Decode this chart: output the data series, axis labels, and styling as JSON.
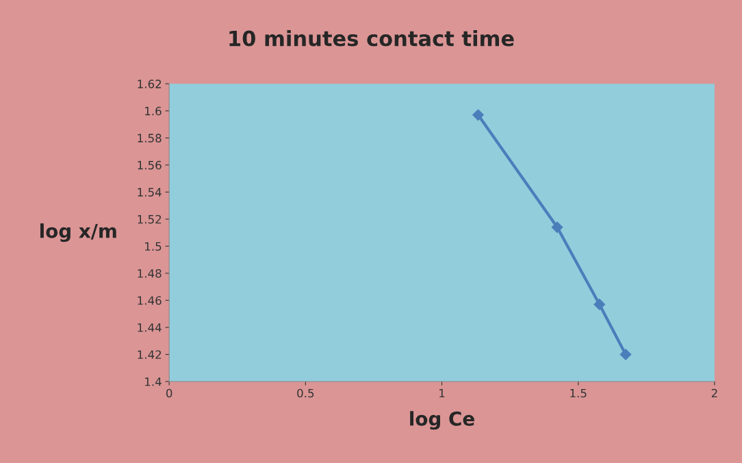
{
  "chart_data": {
    "type": "line",
    "title": "10 minutes contact time",
    "xlabel": "log Ce",
    "ylabel": "log x/m",
    "x": [
      1.133,
      1.423,
      1.578,
      1.674
    ],
    "series": [
      {
        "color": "#4a7ebb",
        "values": [
          1.597,
          1.514,
          1.457,
          1.42
        ]
      }
    ],
    "xlim": [
      0,
      2
    ],
    "xticks": [
      0,
      0.5,
      1,
      1.5,
      2
    ],
    "ylim": [
      1.4,
      1.62
    ],
    "yticks": [
      1.4,
      1.42,
      1.44,
      1.46,
      1.48,
      1.5,
      1.52,
      1.54,
      1.56,
      1.58,
      1.6,
      1.62
    ],
    "grid": false,
    "marker": "diamond",
    "line_style": "solid"
  }
}
